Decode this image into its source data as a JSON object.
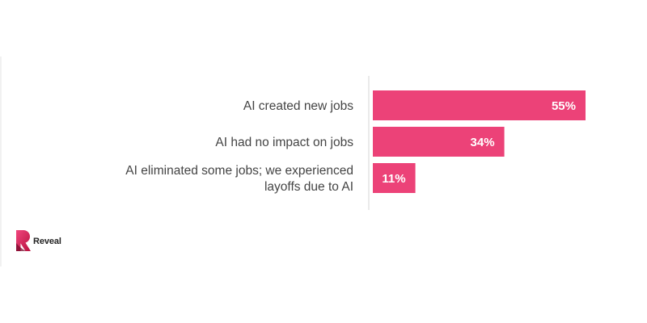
{
  "colors": {
    "bar": "#ec4278",
    "axis": "#d6d6d6",
    "label": "#444444",
    "value_label": "#ffffff"
  },
  "brand": {
    "name": "Reveal",
    "logo_icon": "reveal-r-logo-icon"
  },
  "chart_data": {
    "type": "bar",
    "orientation": "horizontal",
    "categories": [
      [
        "AI created new jobs"
      ],
      [
        "AI had no impact on jobs"
      ],
      [
        "AI eliminated some jobs; we experienced",
        "layoffs due to AI"
      ]
    ],
    "values": [
      55,
      34,
      11
    ],
    "value_labels": [
      "55%",
      "34%",
      "11%"
    ],
    "unit": "%",
    "xlim": [
      0,
      60
    ],
    "grid": false,
    "legend": "none"
  }
}
